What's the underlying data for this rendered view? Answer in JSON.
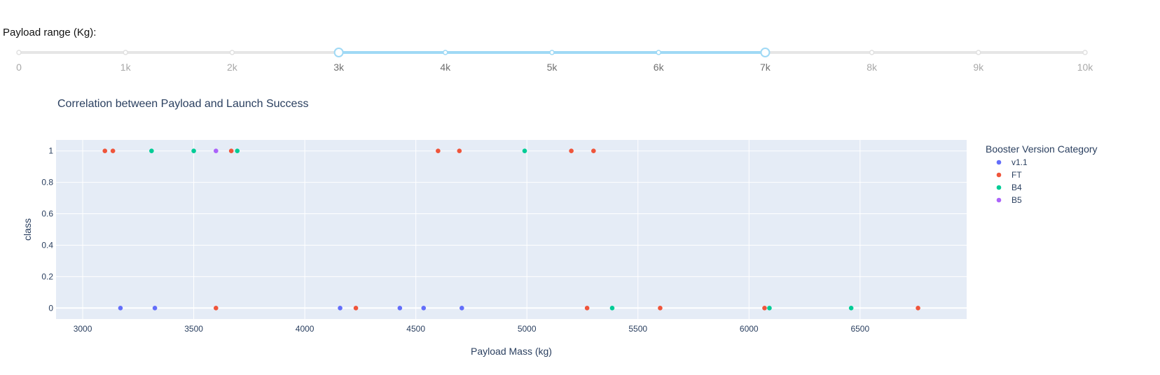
{
  "slider": {
    "label": "Payload range (Kg):",
    "min": 0,
    "max": 10000,
    "step_marks": [
      {
        "value": 0,
        "label": "0"
      },
      {
        "value": 1000,
        "label": "1k"
      },
      {
        "value": 2000,
        "label": "2k"
      },
      {
        "value": 3000,
        "label": "3k"
      },
      {
        "value": 4000,
        "label": "4k"
      },
      {
        "value": 5000,
        "label": "5k"
      },
      {
        "value": 6000,
        "label": "6k"
      },
      {
        "value": 7000,
        "label": "7k"
      },
      {
        "value": 8000,
        "label": "8k"
      },
      {
        "value": 9000,
        "label": "9k"
      },
      {
        "value": 10000,
        "label": "10k"
      }
    ],
    "selected_range": [
      3000,
      7000
    ],
    "colors": {
      "track": "#e6e6e6",
      "active": "#9fd9f5",
      "handle_border": "#9fd9f5"
    }
  },
  "chart_data": {
    "type": "scatter",
    "title": "Correlation between Payload and Launch Success",
    "xlabel": "Payload Mass (kg)",
    "ylabel": "class",
    "xlim": [
      2880,
      6980
    ],
    "ylim": [
      -0.07,
      1.07
    ],
    "x_ticks": [
      3000,
      3500,
      4000,
      4500,
      5000,
      5500,
      6000,
      6500
    ],
    "y_ticks": [
      0,
      0.2,
      0.4,
      0.6,
      0.8,
      1
    ],
    "y_tick_labels": [
      "0",
      "0.2",
      "0.4",
      "0.6",
      "0.8",
      "1"
    ],
    "grid": true,
    "legend": {
      "title": "Booster Version Category",
      "position": "right"
    },
    "series": [
      {
        "name": "v1.1",
        "color": "#636efa",
        "points": [
          [
            3170,
            0
          ],
          [
            3325,
            0
          ],
          [
            4159,
            0
          ],
          [
            4428,
            0
          ],
          [
            4535,
            0
          ],
          [
            4707,
            0
          ]
        ]
      },
      {
        "name": "FT",
        "color": "#ef553b",
        "points": [
          [
            3100,
            1
          ],
          [
            3136,
            1
          ],
          [
            3669,
            1
          ],
          [
            4600,
            1
          ],
          [
            4696,
            1
          ],
          [
            5200,
            1
          ],
          [
            5300,
            1
          ],
          [
            3600,
            0
          ],
          [
            4230,
            0
          ],
          [
            5271,
            0
          ],
          [
            5600,
            0
          ],
          [
            6070,
            0
          ],
          [
            6761,
            0
          ]
        ]
      },
      {
        "name": "B4",
        "color": "#00cc96",
        "points": [
          [
            3310,
            1
          ],
          [
            3500,
            1
          ],
          [
            3696,
            1
          ],
          [
            4990,
            1
          ],
          [
            5384,
            0
          ],
          [
            6092,
            0
          ],
          [
            6460,
            0
          ]
        ]
      },
      {
        "name": "B5",
        "color": "#ab63fa",
        "points": [
          [
            3600,
            1
          ]
        ]
      }
    ]
  }
}
